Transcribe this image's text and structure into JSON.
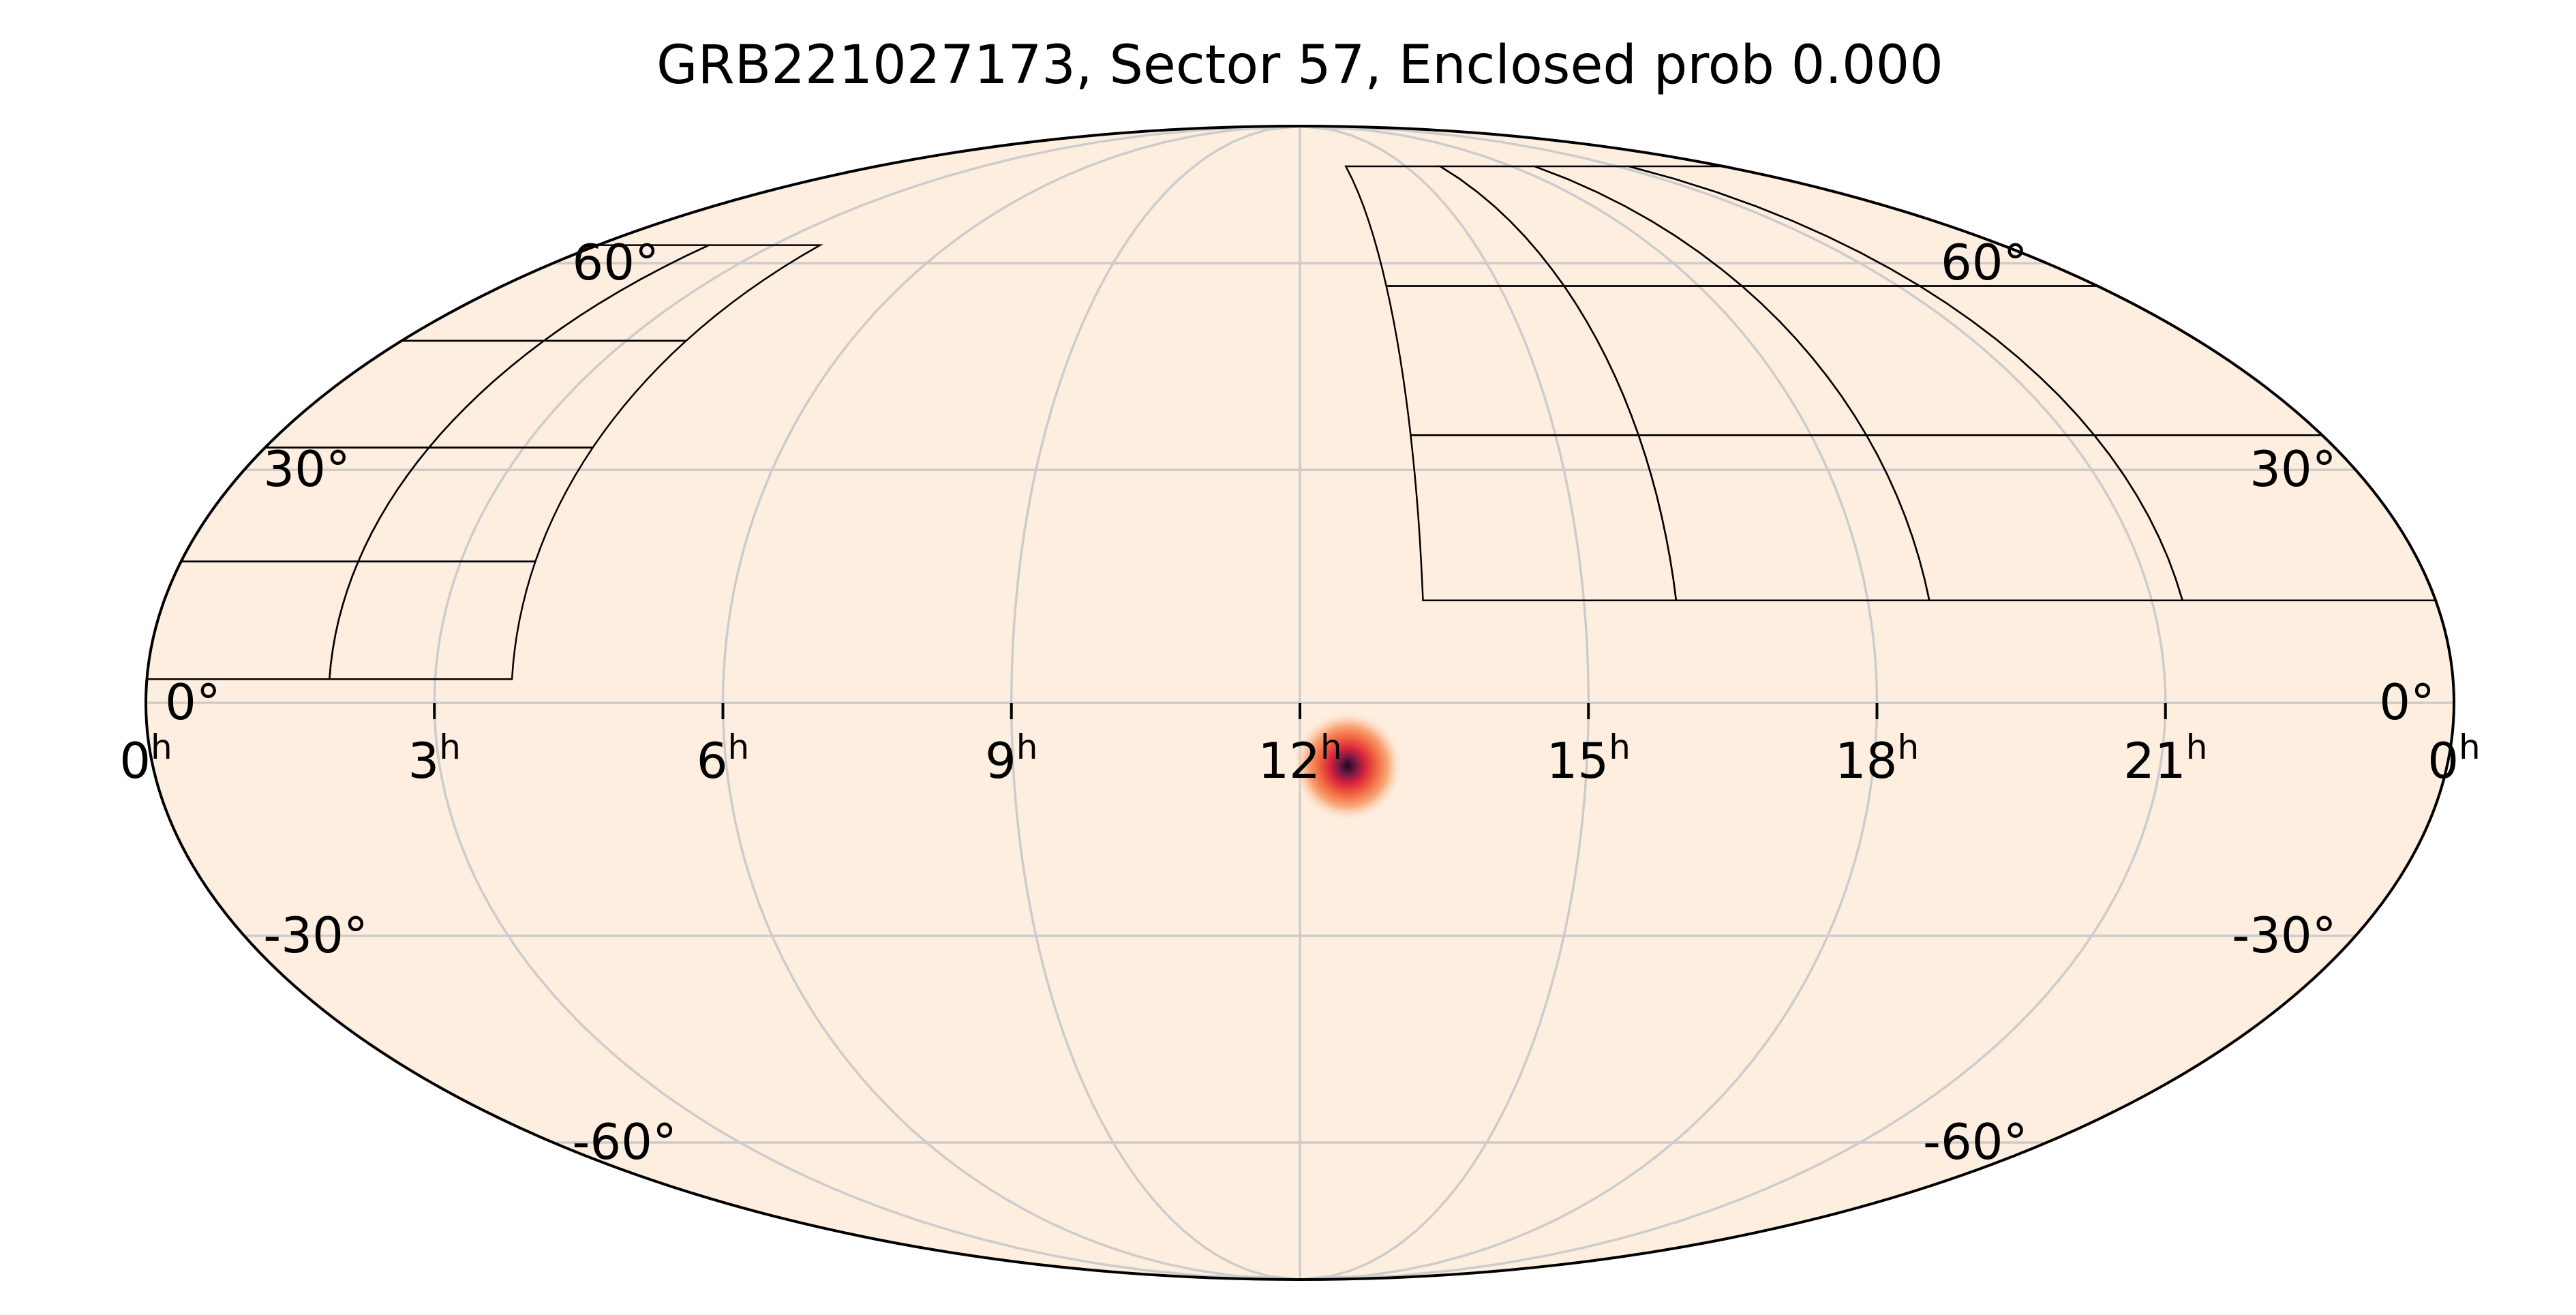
{
  "chart_data": {
    "type": "heatmap",
    "projection": "mollweide",
    "title": "GRB221027173, Sector 57, Enclosed prob 0.000",
    "x_axis": {
      "quantity": "right ascension",
      "unit": "hours",
      "direction": "increasing to the left",
      "range": [
        0,
        24
      ],
      "ticks": [
        24,
        21,
        18,
        15,
        12,
        9,
        6,
        3,
        0
      ],
      "tick_labels": [
        {
          "base": "0",
          "sup": "h"
        },
        {
          "base": "21",
          "sup": "h"
        },
        {
          "base": "18",
          "sup": "h"
        },
        {
          "base": "15",
          "sup": "h"
        },
        {
          "base": "12",
          "sup": "h"
        },
        {
          "base": "9",
          "sup": "h"
        },
        {
          "base": "6",
          "sup": "h"
        },
        {
          "base": "3",
          "sup": "h"
        },
        {
          "base": "0",
          "sup": "h"
        }
      ]
    },
    "y_axis": {
      "quantity": "declination",
      "unit": "degrees",
      "range": [
        -90,
        90
      ],
      "ticks": [
        60,
        30,
        0,
        -30,
        -60
      ],
      "tick_labels": [
        "60°",
        "30°",
        "0°",
        "-30°",
        "-60°"
      ]
    },
    "grid": true,
    "grid_color": "#cccccc",
    "background_color": "#feeee0",
    "colormap": "rocket_r",
    "probability_peak": {
      "ra_hours": 12.5,
      "dec_deg": -8
    },
    "sector_footprints": {
      "color": "#000000",
      "regions": [
        {
          "group": "north-left",
          "ra_min_hours": 13.3,
          "ra_max_hours": 24,
          "dec_min_deg": 13,
          "dec_max_deg": 78
        },
        {
          "group": "right",
          "ra_min_hours": 0,
          "ra_max_hours": 3.8,
          "dec_min_deg": 3,
          "dec_max_deg": 63
        }
      ]
    }
  }
}
